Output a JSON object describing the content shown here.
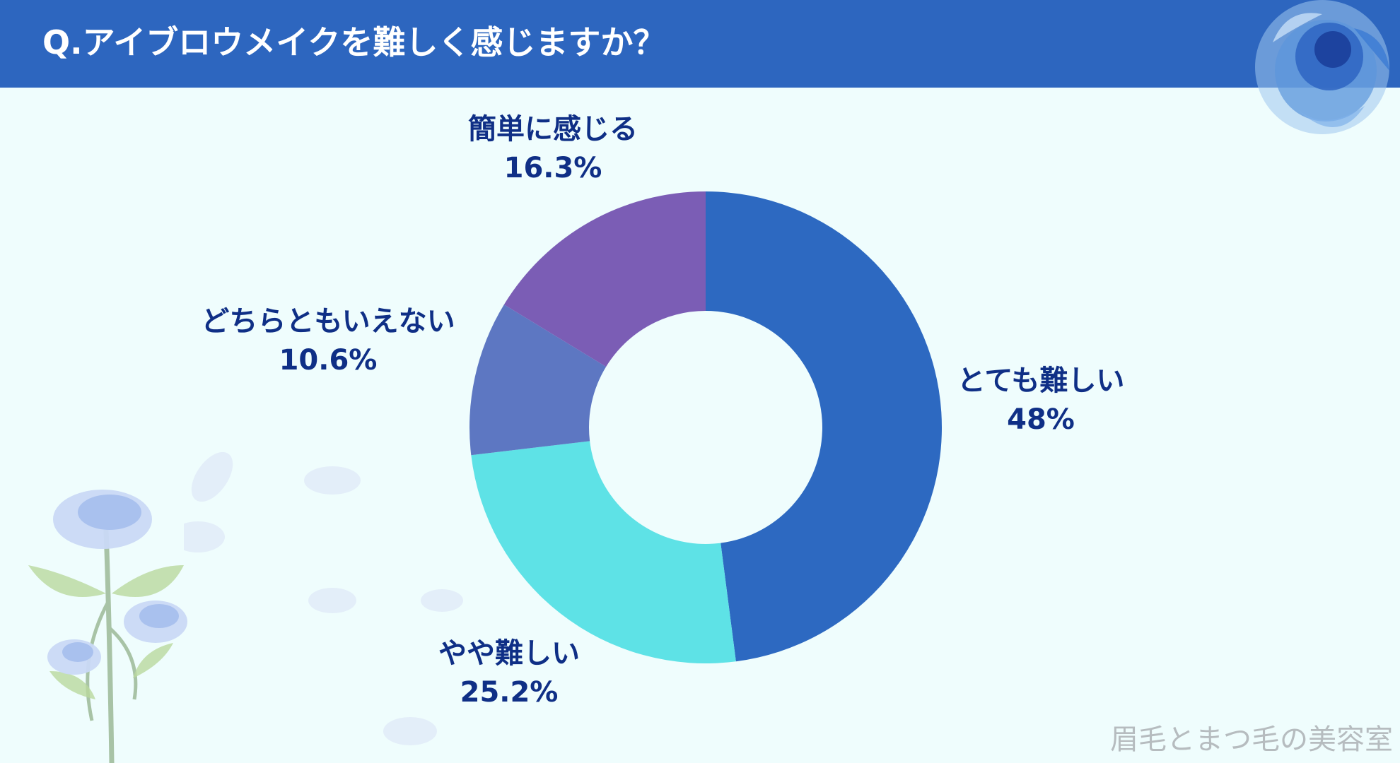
{
  "header": {
    "title": "Q.アイブロウメイクを難しく感じますか？"
  },
  "chart_data": {
    "type": "pie",
    "subtype": "donut",
    "title": "Q.アイブロウメイクを難しく感じますか？",
    "categories": [
      "とても難しい",
      "やや難しい",
      "どちらともいえない",
      "簡単に感じる"
    ],
    "values": [
      48,
      25.2,
      10.6,
      16.3
    ],
    "value_labels": [
      "48%",
      "25.2%",
      "10.6%",
      "16.3%"
    ],
    "colors": [
      "#2d69c1",
      "#5ee2e6",
      "#5d77c2",
      "#7b5db5"
    ],
    "start_angle": "12 o'clock",
    "direction": "clockwise"
  },
  "colors": {
    "header": "#2d66bf",
    "background": "#effdfd",
    "label_text": "#0f2f86"
  },
  "watermark": "眉毛とまつ毛の美容室"
}
